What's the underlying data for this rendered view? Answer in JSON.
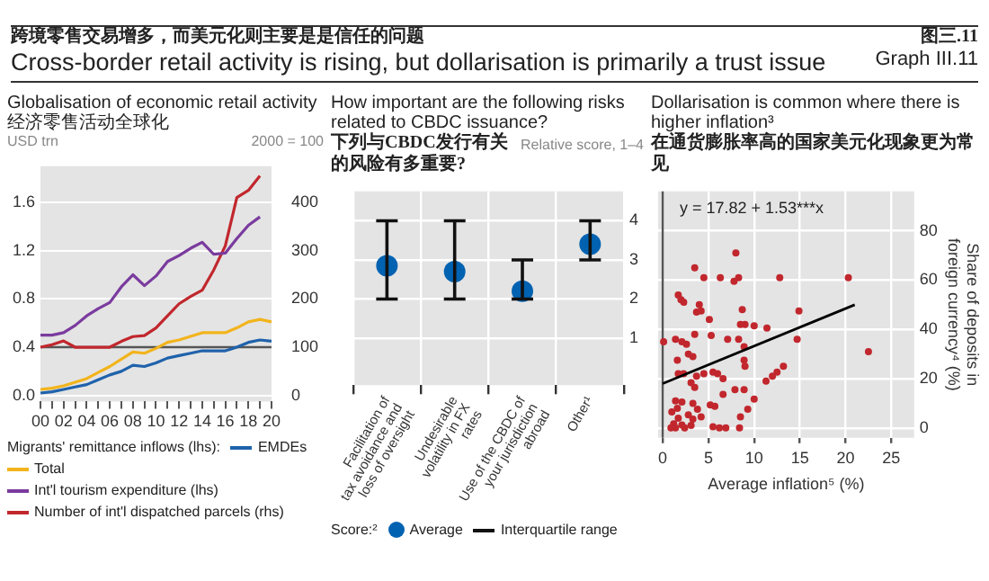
{
  "chart_data": [
    {
      "type": "other",
      "title": "Cross-border retail activity is rising, but dollarisation is primarily a trust issue",
      "subtitle": "跨境零售交易增多，而美元化则主要是是信任的问题",
      "annotations": [
        "图三.11",
        "Graph III.11"
      ]
    },
    {
      "type": "line",
      "title": "Globalisation of economic retail activity 经济零售活动全球化",
      "ylabel": "USD trn",
      "y2label": "2000 = 100",
      "categories": [
        "00",
        null,
        "02",
        null,
        "04",
        null,
        "06",
        null,
        "08",
        null,
        "10",
        null,
        "12",
        null,
        "14",
        null,
        "16",
        null,
        "18",
        null,
        "20"
      ],
      "series": [
        {
          "name": "EMDEs",
          "color": "#1f62ab",
          "values": [
            0.02,
            0.03,
            0.05,
            0.07,
            0.09,
            0.13,
            0.17,
            0.2,
            0.25,
            0.24,
            0.27,
            0.31,
            0.33,
            0.35,
            0.37,
            0.37,
            0.37,
            0.4,
            0.44,
            0.46,
            0.45
          ]
        },
        {
          "name": "Total",
          "color": "#f2b41c",
          "values": [
            0.05,
            0.06,
            0.08,
            0.11,
            0.14,
            0.19,
            0.24,
            0.3,
            0.36,
            0.35,
            0.39,
            0.44,
            0.46,
            0.49,
            0.52,
            0.52,
            0.52,
            0.56,
            0.61,
            0.63,
            0.61
          ]
        },
        {
          "name": "Int'l tourism expenditure (lhs)",
          "color": "#7a3b9e",
          "values": [
            0.5,
            0.5,
            0.52,
            0.58,
            0.66,
            0.72,
            0.77,
            0.9,
            1.0,
            0.91,
            0.99,
            1.11,
            1.16,
            1.22,
            1.27,
            1.17,
            1.18,
            1.3,
            1.41,
            1.48,
            null
          ]
        },
        {
          "name": "Number of int'l dispatched parcels (rhs)",
          "color": "#c1272d",
          "axis": "y2",
          "values": [
            100,
            105,
            113,
            100,
            100,
            100,
            100,
            112,
            122,
            124,
            140,
            165,
            190,
            205,
            218,
            260,
            310,
            410,
            425,
            455,
            null
          ]
        }
      ],
      "legend_title": "Migrants' remittance inflows (lhs):",
      "legend": "bottom",
      "ylim": [
        -0.05,
        1.9
      ],
      "yticks": [
        {
          "value": 0,
          "label": "0.0"
        },
        0.4,
        0.8,
        1.2,
        1.6
      ],
      "y2lim": [
        -12.5,
        475
      ],
      "y2ticks": [
        0,
        100,
        200,
        300,
        400
      ],
      "ref_lines": [
        {
          "axis": "y2",
          "value": 100,
          "color": "#555555"
        }
      ],
      "grid": "y"
    },
    {
      "type": "scatter",
      "title": "How important are the following risks related to CBDC issuance?",
      "subtitle": "下列与CBDC发行有关的风险有多重要?",
      "ylabel": "Relative score, 1–4",
      "categories": [
        "Facilitation of tax avoidance and loss of oversight",
        "Undesirable volatility in FX rates",
        "Use of the CBDC of your jurisdiction abroad",
        "Other¹"
      ],
      "series": [
        {
          "name": "Average",
          "color": "#0062b1",
          "values": [
            2.85,
            2.7,
            2.2,
            3.4
          ],
          "errors": [
            [
              2,
              4
            ],
            [
              2,
              4
            ],
            [
              2,
              3
            ],
            [
              3,
              4
            ]
          ]
        }
      ],
      "legend_title": "Score:²",
      "legend": "bottom",
      "annotations": [
        "Interquartile range"
      ],
      "ylim": [
        -0.2,
        4.75
      ],
      "yticks": [
        1,
        2,
        3,
        4
      ],
      "grid": true,
      "marker": "circle"
    },
    {
      "type": "scatter",
      "title": "Dollarisation is common where there is higher inflation³",
      "subtitle": "在通货膨胀率高的国家美元化现象更为常见",
      "xlabel": "Average inflation⁵ (%)",
      "ylabel": "Share of deposits in foreign currency⁴ (%)",
      "annotations": [
        "y = 17.82 + 1.53***x"
      ],
      "series": [
        {
          "color": "#c1272d",
          "x": [
            0.1,
            8.0,
            3.5,
            4.5,
            6.3,
            7.8,
            8.3,
            12.8,
            20.3,
            1.7,
            2.0,
            2.3,
            4.0,
            8.7,
            14.9,
            3.7,
            4.2,
            5.1,
            8.5,
            9.0,
            10.0,
            11.4,
            3.5,
            5.3,
            1.4,
            2.1,
            2.6,
            7.1,
            8.3,
            8.9,
            14.7,
            22.5,
            2.8,
            3.3,
            1.6,
            8.9,
            9.0,
            13.2,
            12.5,
            12.0,
            11.3,
            1.7,
            2.3,
            3.7,
            4.5,
            5.5,
            6.0,
            6.6,
            3.1,
            3.5,
            7.9,
            8.9,
            6.6,
            1.4,
            2.1,
            3.3,
            5.2,
            5.7,
            10.0,
            9.3,
            1.6,
            3.8,
            1.0,
            2.8,
            4.2,
            1.7,
            3.3,
            8.5,
            1.2,
            2.1,
            3.1,
            5.5,
            6.2,
            6.9,
            8.4,
            1.4,
            2.4,
            0.9
          ],
          "values": [
            35,
            71,
            65,
            61,
            61,
            59.5,
            61,
            61,
            61,
            54,
            52,
            51,
            50,
            48,
            47.5,
            47,
            47.5,
            44,
            42,
            42,
            41.5,
            40.5,
            38,
            37.5,
            36,
            35,
            34,
            36,
            36,
            33,
            36,
            31,
            30,
            29,
            27.5,
            27.5,
            25,
            25,
            22.7,
            21,
            19,
            22,
            22,
            21,
            22,
            22.7,
            22,
            20,
            18.4,
            16.5,
            15.5,
            15.5,
            13.6,
            11,
            10.5,
            10,
            9.3,
            8.8,
            11.7,
            7.6,
            8,
            7.6,
            6.5,
            5.3,
            4.5,
            4,
            3.6,
            4.5,
            1.7,
            1.2,
            1,
            0.5,
            0,
            0,
            0,
            0,
            0,
            0
          ]
        },
        {
          "type": "line",
          "color": "#000000",
          "marker": "none",
          "x": [
            0,
            21
          ],
          "values": [
            18,
            50
          ]
        }
      ],
      "xlim": [
        -0.5,
        27.5
      ],
      "xticks": [
        0,
        5,
        10,
        15,
        20,
        25
      ],
      "ylim": [
        -4,
        96
      ],
      "yticks": [
        0,
        20,
        40,
        60,
        80
      ],
      "ref_lines": [
        {
          "axis": "x",
          "value": 0,
          "color": "#555555"
        }
      ],
      "grid": true,
      "marker": "circle"
    }
  ]
}
